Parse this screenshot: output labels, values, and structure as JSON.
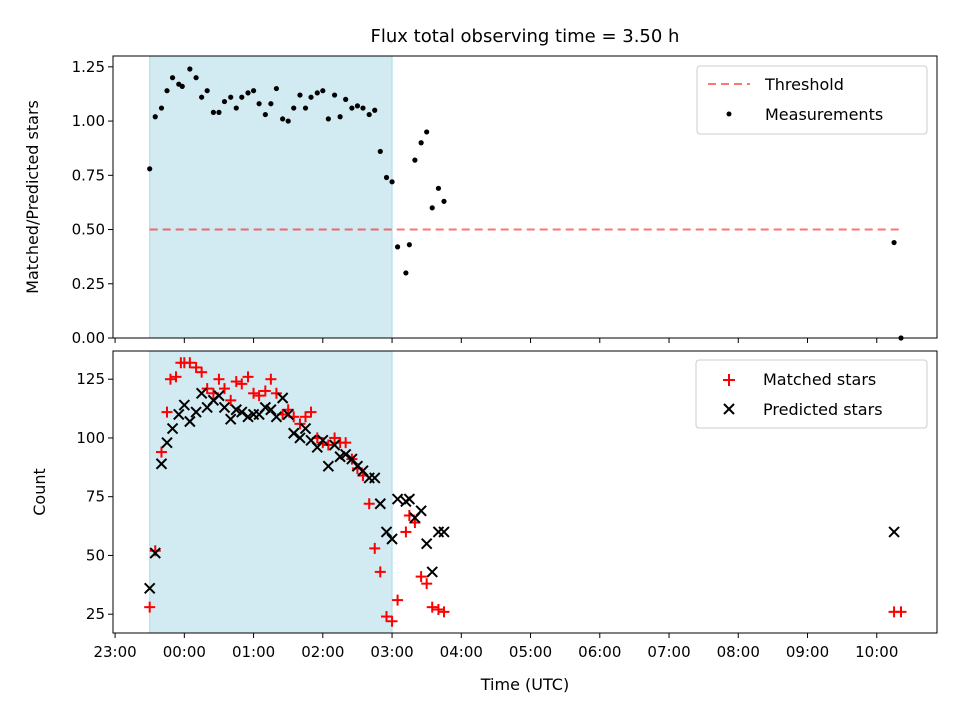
{
  "figure_title": "Flux total observing time = 3.50 h",
  "chart_data": [
    {
      "type": "scatter",
      "id": "ratio",
      "title": "Flux total observing time = 3.50 h",
      "ylabel": "Matched/Predicted stars",
      "xlabel": "",
      "x_unit": "hours since 00:00 UTC",
      "xlim": [
        -1.03,
        10.87
      ],
      "ylim": [
        0,
        1.3
      ],
      "yticks": [
        0,
        0.25,
        0.5,
        0.75,
        1.0,
        1.25
      ],
      "ytick_labels": [
        "0.00",
        "0.25",
        "0.50",
        "0.75",
        "1.00",
        "1.25"
      ],
      "observing_window": {
        "start": -0.5,
        "end": 3.0,
        "color": "#add8e6"
      },
      "threshold": {
        "label": "Threshold",
        "value": 0.5,
        "x_start": -0.5,
        "x_end": 10.35,
        "color": "#ff0000"
      },
      "series": [
        {
          "name": "Measurements",
          "marker": "dot",
          "color": "#000000",
          "x": [
            -0.5,
            -0.42,
            -0.33,
            -0.25,
            -0.17,
            -0.08,
            -0.03,
            0.08,
            0.17,
            0.25,
            0.33,
            0.42,
            0.5,
            0.58,
            0.67,
            0.75,
            0.83,
            0.92,
            1.0,
            1.08,
            1.17,
            1.25,
            1.33,
            1.42,
            1.5,
            1.58,
            1.67,
            1.75,
            1.83,
            1.92,
            2.0,
            2.08,
            2.17,
            2.25,
            2.33,
            2.42,
            2.5,
            2.58,
            2.67,
            2.75,
            2.83,
            2.92,
            3.0,
            3.08,
            3.2,
            3.25,
            3.33,
            3.42,
            3.5,
            3.58,
            3.67,
            3.75,
            10.25,
            10.35
          ],
          "y": [
            0.78,
            1.02,
            1.06,
            1.14,
            1.2,
            1.17,
            1.16,
            1.24,
            1.2,
            1.11,
            1.14,
            1.04,
            1.04,
            1.09,
            1.11,
            1.06,
            1.11,
            1.13,
            1.14,
            1.08,
            1.03,
            1.08,
            1.15,
            1.01,
            1.0,
            1.06,
            1.12,
            1.06,
            1.11,
            1.13,
            1.14,
            1.01,
            1.12,
            1.02,
            1.1,
            1.06,
            1.07,
            1.06,
            1.03,
            1.05,
            0.86,
            0.74,
            0.72,
            0.42,
            0.3,
            0.43,
            0.82,
            0.9,
            0.95,
            0.6,
            0.69,
            0.63,
            0.44,
            0.0
          ]
        }
      ],
      "legend": {
        "placement": "top-right",
        "entries": [
          "Threshold",
          "Measurements"
        ]
      }
    },
    {
      "type": "scatter",
      "id": "counts",
      "ylabel": "Count",
      "xlabel": "Time (UTC)",
      "x_unit": "hours since 00:00 UTC",
      "xlim": [
        -1.03,
        10.87
      ],
      "ylim": [
        17,
        137
      ],
      "yticks": [
        25,
        50,
        75,
        100,
        125
      ],
      "ytick_labels": [
        "25",
        "50",
        "75",
        "100",
        "125"
      ],
      "xticks": [
        -1,
        0,
        1,
        2,
        3,
        4,
        5,
        6,
        7,
        8,
        9,
        10
      ],
      "xtick_labels": [
        "23:00",
        "00:00",
        "01:00",
        "02:00",
        "03:00",
        "04:00",
        "05:00",
        "06:00",
        "07:00",
        "08:00",
        "09:00",
        "10:00"
      ],
      "observing_window": {
        "start": -0.5,
        "end": 3.0,
        "color": "#add8e6"
      },
      "series": [
        {
          "name": "Matched stars",
          "marker": "plus",
          "color": "#ff0000",
          "x": [
            -0.5,
            -0.42,
            -0.33,
            -0.25,
            -0.2,
            -0.12,
            -0.05,
            0.0,
            0.08,
            0.17,
            0.25,
            0.33,
            0.42,
            0.5,
            0.58,
            0.67,
            0.75,
            0.83,
            0.92,
            1.0,
            1.08,
            1.17,
            1.25,
            1.33,
            1.42,
            1.5,
            1.58,
            1.67,
            1.75,
            1.83,
            1.92,
            2.0,
            2.08,
            2.17,
            2.25,
            2.33,
            2.42,
            2.5,
            2.58,
            2.67,
            2.75,
            2.83,
            2.92,
            3.0,
            3.08,
            3.2,
            3.25,
            3.33,
            3.42,
            3.5,
            3.58,
            3.67,
            3.75,
            10.25,
            10.35
          ],
          "y": [
            28,
            52,
            94,
            111,
            125,
            126,
            132,
            132,
            132,
            130,
            128,
            121,
            119,
            125,
            121,
            116,
            124,
            123,
            126,
            119,
            118,
            120,
            125,
            119,
            110,
            112,
            109,
            106,
            109,
            111,
            100,
            98,
            97,
            100,
            98,
            98,
            91,
            87,
            84,
            72,
            53,
            43,
            24,
            22,
            31,
            60,
            67,
            64,
            41,
            38,
            28,
            27,
            26,
            26,
            26
          ]
        },
        {
          "name": "Predicted stars",
          "marker": "x",
          "color": "#000000",
          "x": [
            -0.5,
            -0.42,
            -0.33,
            -0.25,
            -0.17,
            -0.08,
            0.0,
            0.08,
            0.17,
            0.25,
            0.33,
            0.42,
            0.5,
            0.58,
            0.67,
            0.75,
            0.83,
            0.92,
            1.0,
            1.08,
            1.17,
            1.25,
            1.33,
            1.42,
            1.5,
            1.58,
            1.67,
            1.75,
            1.83,
            1.92,
            2.0,
            2.08,
            2.17,
            2.25,
            2.33,
            2.42,
            2.5,
            2.58,
            2.67,
            2.75,
            2.83,
            2.92,
            3.0,
            3.08,
            3.2,
            3.25,
            3.33,
            3.42,
            3.5,
            3.58,
            3.67,
            3.75,
            10.25
          ],
          "y": [
            36,
            51,
            89,
            98,
            104,
            110,
            114,
            107,
            111,
            119,
            113,
            116,
            118,
            113,
            108,
            112,
            111,
            109,
            110,
            110,
            113,
            112,
            109,
            117,
            110,
            102,
            100,
            104,
            99,
            96,
            99,
            88,
            97,
            92,
            93,
            91,
            88,
            86,
            83,
            83,
            72,
            60,
            57,
            74,
            73,
            74,
            66,
            69,
            55,
            43,
            60,
            60,
            60
          ]
        }
      ],
      "legend": {
        "placement": "top-right",
        "entries": [
          "Matched stars",
          "Predicted stars"
        ]
      }
    }
  ]
}
